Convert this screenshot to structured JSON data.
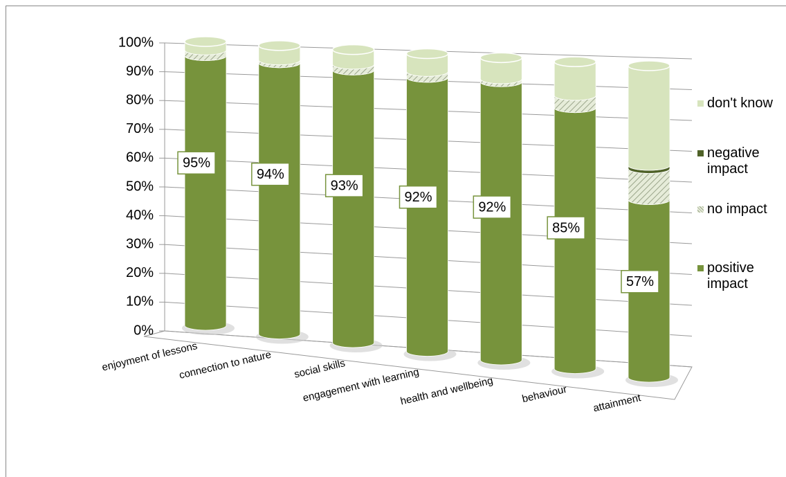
{
  "chart_data": {
    "type": "stacked-cylinder",
    "categories": [
      "enjoyment of lessons",
      "connection to nature",
      "social skills",
      "engagement with learning",
      "health and wellbeing",
      "behaviour",
      "attainment"
    ],
    "series": [
      {
        "name": "positive impact",
        "color": "#77933c",
        "values": [
          95,
          94,
          93,
          92,
          92,
          85,
          57
        ],
        "value_labels": [
          "95%",
          "94%",
          "93%",
          "92%",
          "92%",
          "85%",
          "57%"
        ]
      },
      {
        "name": "no impact",
        "color": "#e6ecd9",
        "pattern": "hatch",
        "values": [
          2,
          1,
          2,
          2,
          1,
          4,
          10
        ]
      },
      {
        "name": "negative impact",
        "color": "#4f6228",
        "values": [
          0,
          0,
          0,
          0,
          0,
          0,
          1
        ]
      },
      {
        "name": "don't know",
        "color": "#d7e4bd",
        "values": [
          3,
          5,
          5,
          6,
          7,
          11,
          32
        ]
      }
    ],
    "ylim": [
      0,
      100
    ],
    "yticks": [
      {
        "value": 0,
        "label": "0%"
      },
      {
        "value": 10,
        "label": "10%"
      },
      {
        "value": 20,
        "label": "20%"
      },
      {
        "value": 30,
        "label": "30%"
      },
      {
        "value": 40,
        "label": "40%"
      },
      {
        "value": 50,
        "label": "50%"
      },
      {
        "value": 60,
        "label": "60%"
      },
      {
        "value": 70,
        "label": "70%"
      },
      {
        "value": 80,
        "label": "80%"
      },
      {
        "value": 90,
        "label": "90%"
      },
      {
        "value": 100,
        "label": "100%"
      }
    ],
    "grid": true,
    "legend": "right"
  }
}
